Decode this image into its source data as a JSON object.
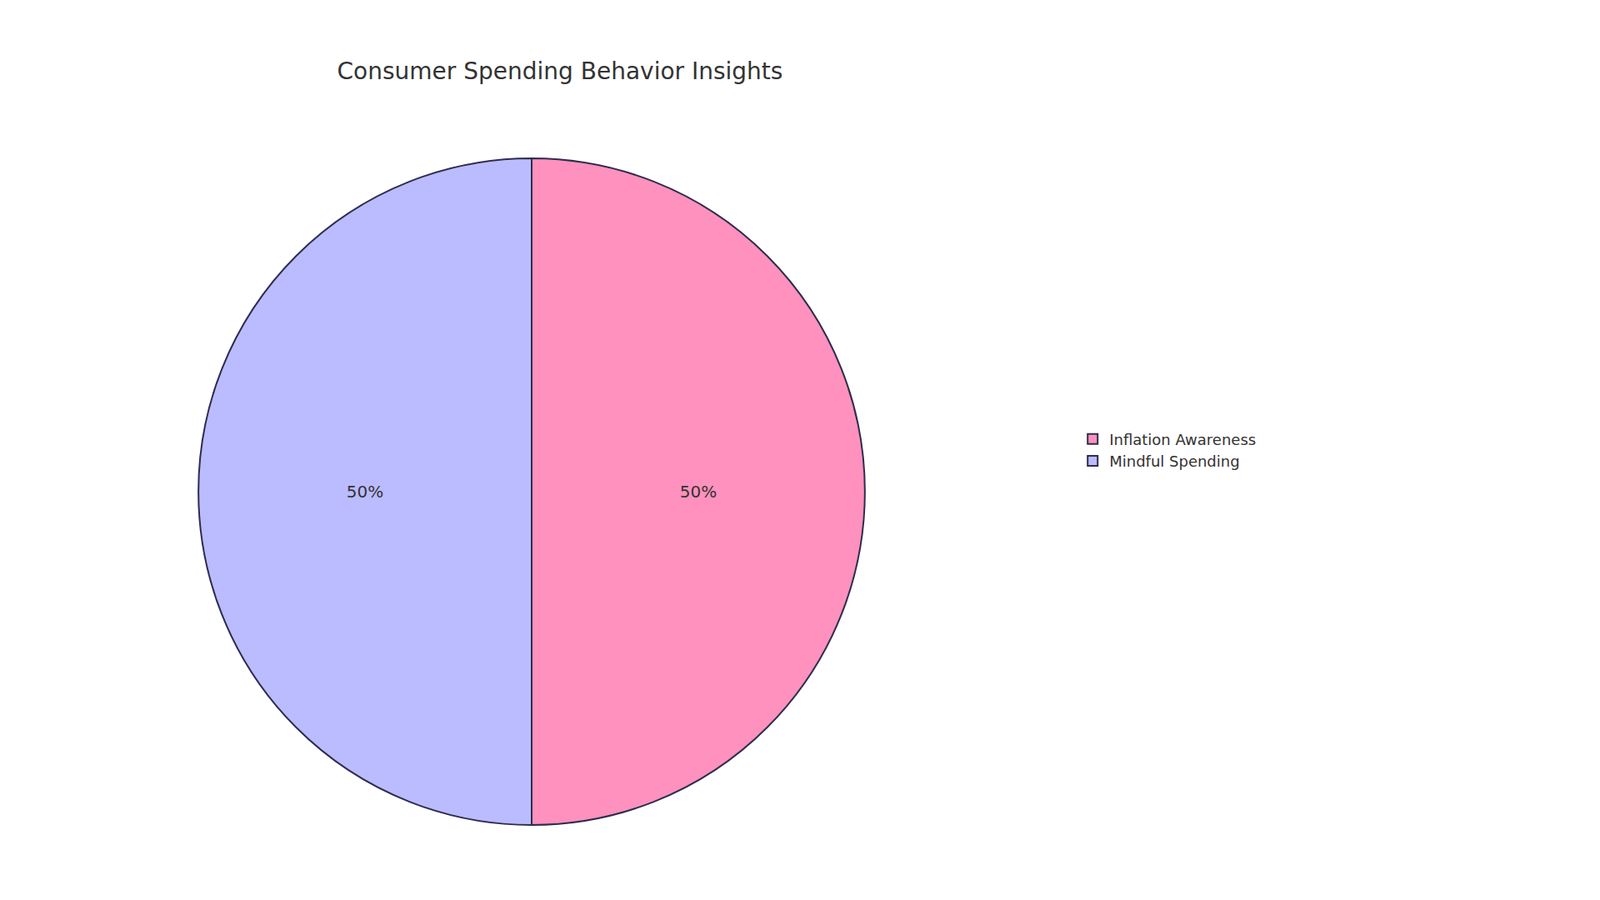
{
  "chart_data": {
    "type": "pie",
    "title": "Consumer Spending Behavior Insights",
    "categories": [
      "Inflation Awareness",
      "Mindful Spending"
    ],
    "values": [
      50,
      50
    ],
    "value_labels": [
      "50%",
      "50%"
    ],
    "colors": [
      "#FF91BE",
      "#BBBBFF"
    ],
    "data_labels": true,
    "legend": "right"
  }
}
